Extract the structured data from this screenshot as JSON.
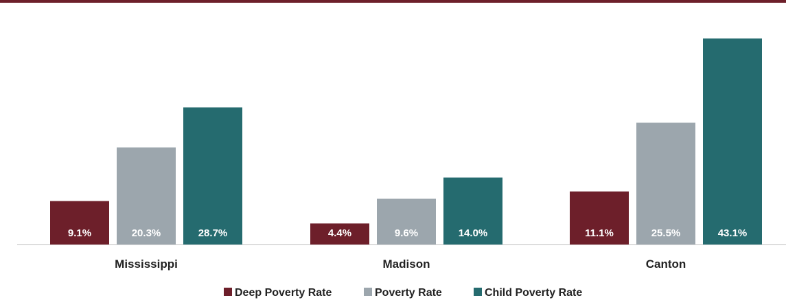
{
  "chart_data": {
    "type": "bar",
    "categories": [
      "Mississippi",
      "Madison",
      "Canton"
    ],
    "series": [
      {
        "name": "Deep Poverty Rate",
        "values": [
          9.1,
          4.4,
          11.1
        ],
        "labels": [
          "9.1%",
          "4.4%",
          "11.1%"
        ],
        "color": "#6d1f2a"
      },
      {
        "name": "Poverty Rate",
        "values": [
          20.3,
          9.6,
          25.5
        ],
        "labels": [
          "20.3%",
          "9.6%",
          "25.5%"
        ],
        "color": "#9ca6ad"
      },
      {
        "name": "Child Poverty Rate",
        "values": [
          28.7,
          14.0,
          43.1
        ],
        "labels": [
          "28.7%",
          "14.0%",
          "43.1%"
        ],
        "color": "#256b6f"
      }
    ],
    "ylim": [
      0,
      45
    ],
    "grid": false,
    "legend_position": "bottom"
  },
  "colors": {
    "top_rule": "#6d1f2a",
    "axis": "#bbbbbb"
  }
}
